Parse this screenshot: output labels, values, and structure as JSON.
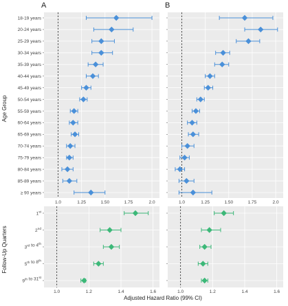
{
  "panel_letters": [
    "A",
    "B"
  ],
  "y_titles": {
    "top": "Age Group",
    "bottom": "Follow-Up Quarters"
  },
  "x_title": "Adjusted Hazard Ratio (99% CI)",
  "colors": {
    "blue": "#4a90d9",
    "green": "#3cb878",
    "panel_bg": "#ebebeb",
    "grid": "#ffffff"
  },
  "chart_data": [
    {
      "type": "scatter",
      "panel": "A",
      "group": "Age Group",
      "categories": [
        "18-19 years",
        "20-24 years",
        "25-29 years",
        "30-34 years",
        "35-39 years",
        "40-44 years",
        "45-49 years",
        "50-54 years",
        "55-59 years",
        "60-64 years",
        "65-69 years",
        "70-74 years",
        "75-79 years",
        "80-84 years",
        "85-89 years",
        "≥ 90 years"
      ],
      "values": [
        1.62,
        1.57,
        1.46,
        1.46,
        1.4,
        1.37,
        1.3,
        1.27,
        1.17,
        1.16,
        1.18,
        1.13,
        1.12,
        1.1,
        1.12,
        1.35
      ],
      "lower": [
        1.3,
        1.38,
        1.36,
        1.36,
        1.32,
        1.3,
        1.25,
        1.23,
        1.13,
        1.12,
        1.14,
        1.09,
        1.09,
        1.04,
        1.05,
        1.17
      ],
      "upper": [
        2.0,
        1.8,
        1.6,
        1.58,
        1.48,
        1.43,
        1.35,
        1.31,
        1.21,
        1.21,
        1.22,
        1.18,
        1.16,
        1.16,
        1.2,
        1.5
      ],
      "xticks": [
        "1.0",
        "1.25",
        "1.50",
        "1.75",
        "2.0"
      ],
      "xlim": [
        0.85,
        2.08
      ],
      "reference_line": 1.0
    },
    {
      "type": "scatter",
      "panel": "B",
      "group": "Age Group",
      "categories": [
        "18-19 years",
        "20-24 years",
        "25-29 years",
        "30-34 years",
        "35-39 years",
        "40-44 years",
        "45-49 years",
        "50-54 years",
        "55-59 years",
        "60-64 years",
        "65-69 years",
        "70-74 years",
        "75-79 years",
        "80-84 years",
        "85-89 years",
        "≥ 90 years"
      ],
      "values": [
        1.67,
        1.84,
        1.71,
        1.44,
        1.43,
        1.3,
        1.28,
        1.2,
        1.15,
        1.11,
        1.12,
        1.06,
        1.03,
        0.98,
        1.05,
        1.12
      ],
      "lower": [
        1.4,
        1.67,
        1.58,
        1.36,
        1.35,
        1.25,
        1.24,
        1.16,
        1.11,
        1.06,
        1.07,
        1.0,
        0.98,
        0.93,
        0.97,
        0.97
      ],
      "upper": [
        1.97,
        2.02,
        1.83,
        1.51,
        1.5,
        1.35,
        1.33,
        1.24,
        1.19,
        1.16,
        1.18,
        1.13,
        1.08,
        1.03,
        1.13,
        1.32
      ],
      "xticks": [
        "1.0",
        "1.25",
        "1.50",
        "1.75",
        "2.0"
      ],
      "xlim": [
        0.85,
        2.08
      ],
      "reference_line": 1.0
    },
    {
      "type": "scatter",
      "panel": "A",
      "group": "Follow-Up Quarters",
      "categories": [
        {
          "base": "1",
          "sup": "st",
          "tail": ""
        },
        {
          "base": "2",
          "sup": "nd",
          "tail": ""
        },
        {
          "base": "3",
          "sup": "rd",
          "tail": " to 4",
          "sup2": "th"
        },
        {
          "base": "5",
          "sup": "th",
          "tail": " to 8",
          "sup2": "th"
        },
        {
          "base": "9",
          "sup": "th",
          "tail": " to 31",
          "sup2": "st"
        }
      ],
      "values": [
        1.49,
        1.33,
        1.34,
        1.26,
        1.17
      ],
      "lower": [
        1.42,
        1.27,
        1.29,
        1.23,
        1.15
      ],
      "upper": [
        1.57,
        1.4,
        1.39,
        1.29,
        1.18
      ],
      "xticks": [
        "1.0",
        "1.2",
        "1.4",
        "1.6"
      ],
      "xlim": [
        0.92,
        1.64
      ],
      "reference_line": 1.0
    },
    {
      "type": "scatter",
      "panel": "B",
      "group": "Follow-Up Quarters",
      "categories": [
        {
          "base": "1",
          "sup": "st",
          "tail": ""
        },
        {
          "base": "2",
          "sup": "nd",
          "tail": ""
        },
        {
          "base": "3",
          "sup": "rd",
          "tail": " to 4",
          "sup2": "th"
        },
        {
          "base": "5",
          "sup": "th",
          "tail": " to 8",
          "sup2": "th"
        },
        {
          "base": "9",
          "sup": "th",
          "tail": " to 31",
          "sup2": "st"
        }
      ],
      "values": [
        1.27,
        1.18,
        1.15,
        1.14,
        1.15
      ],
      "lower": [
        1.21,
        1.13,
        1.12,
        1.11,
        1.13
      ],
      "upper": [
        1.33,
        1.25,
        1.19,
        1.17,
        1.17
      ],
      "xticks": [
        "1.0",
        "1.2",
        "1.4",
        "1.6"
      ],
      "xlim": [
        0.92,
        1.64
      ],
      "reference_line": 1.0
    }
  ]
}
